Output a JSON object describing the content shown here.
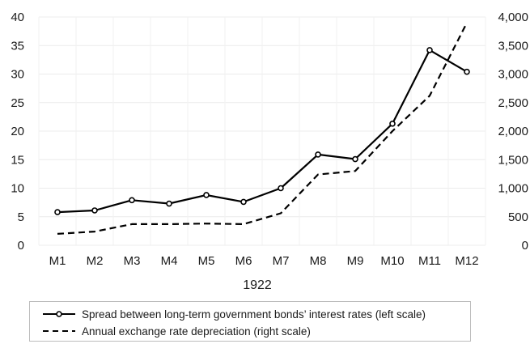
{
  "chart_data": {
    "type": "line",
    "categories": [
      "M1",
      "M2",
      "M3",
      "M4",
      "M5",
      "M6",
      "M7",
      "M8",
      "M9",
      "M10",
      "M11",
      "M12"
    ],
    "xlabel": "1922",
    "y_left": {
      "min": 0,
      "max": 40,
      "ticks": [
        "0",
        "5",
        "10",
        "15",
        "20",
        "25",
        "30",
        "35",
        "40"
      ]
    },
    "y_right": {
      "min": 0,
      "max": 4000,
      "ticks": [
        "0",
        "500",
        "1,000",
        "1,500",
        "2,000",
        "2,500",
        "3,000",
        "3,500",
        "4,000"
      ]
    },
    "grid": true,
    "legend_position": "bottom",
    "series": [
      {
        "name": "Spread between long-term government bonds’ interest rates (left scale)",
        "axis": "left",
        "style": "solid-markers",
        "color": "#000000",
        "values": [
          5.8,
          6.1,
          7.9,
          7.3,
          8.8,
          7.6,
          10.0,
          15.9,
          15.1,
          21.3,
          34.2,
          30.4
        ]
      },
      {
        "name": "Annual exchange rate depreciation (right scale)",
        "axis": "right",
        "style": "dashed",
        "color": "#000000",
        "values": [
          200,
          240,
          370,
          370,
          380,
          370,
          560,
          1240,
          1300,
          2000,
          2620,
          3900
        ]
      }
    ]
  }
}
